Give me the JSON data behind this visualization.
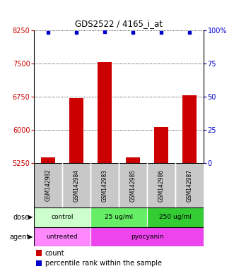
{
  "title": "GDS2522 / 4165_i_at",
  "samples": [
    "GSM142982",
    "GSM142984",
    "GSM142983",
    "GSM142985",
    "GSM142986",
    "GSM142987"
  ],
  "counts": [
    5380,
    6720,
    7520,
    5380,
    6060,
    6780
  ],
  "percentile_ranks": [
    98,
    98,
    99,
    98,
    98,
    98
  ],
  "ylim_left": [
    5250,
    8250
  ],
  "yticks_left": [
    5250,
    6000,
    6750,
    7500,
    8250
  ],
  "yticks_right": [
    0,
    25,
    50,
    75,
    100
  ],
  "ylim_right": [
    0,
    100
  ],
  "bar_color": "#cc0000",
  "dot_color": "#0000cc",
  "left_axis_color": "#cc0000",
  "right_axis_color": "#0000cc",
  "sample_box_color": "#c8c8c8",
  "dose_groups": [
    {
      "label": "control",
      "start": 0,
      "end": 2,
      "color": "#ccffcc"
    },
    {
      "label": "25 ug/ml",
      "start": 2,
      "end": 4,
      "color": "#66ee66"
    },
    {
      "label": "250 ug/ml",
      "start": 4,
      "end": 6,
      "color": "#33cc33"
    }
  ],
  "agent_groups": [
    {
      "label": "untreated",
      "start": 0,
      "end": 2,
      "color": "#ff88ff"
    },
    {
      "label": "pyocyanin",
      "start": 2,
      "end": 6,
      "color": "#ee44ee"
    }
  ],
  "dose_label": "dose",
  "agent_label": "agent",
  "legend_count_label": "count",
  "legend_pct_label": "percentile rank within the sample"
}
